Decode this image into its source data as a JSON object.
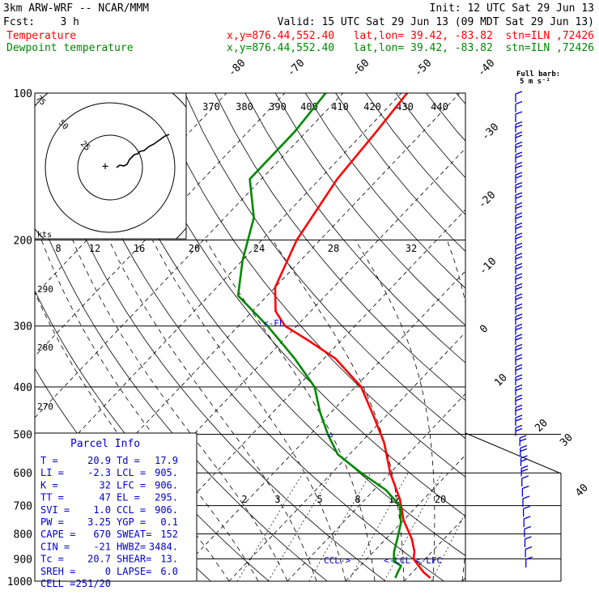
{
  "header": {
    "model": "3km ARW-WRF -- NCAR/MMM",
    "init": "Init: 12 UTC Sat 29 Jun 13",
    "fcst": "Fcst:    3 h",
    "valid": "Valid: 15 UTC Sat 29 Jun 13 (09 MDT Sat 29 Jun 13)",
    "temp_label": "Temperature",
    "temp_info": "x,y=876.44,552.40   lat,lon= 39.42, -83.82  stn=ILN ,72426",
    "dew_label": "Dewpoint temperature",
    "dew_info": "x,y=876.44,552.40   lat,lon= 39.42, -83.82  stn=ILN ,72426",
    "full_barb": "Full barb:",
    "full_barb_value": "5 m s⁻¹"
  },
  "colors": {
    "temperature": "#ff0000",
    "dewpoint": "#008800",
    "parcel_text": "#0000cc",
    "barbs": "#0000cc"
  },
  "chart_data": {
    "type": "line",
    "kind": "skew-t log-p sounding",
    "pressure_levels": [
      "100",
      "200",
      "300",
      "400",
      "500",
      "600",
      "700",
      "800",
      "900",
      "1000"
    ],
    "skewed_isotherm_labels": [
      "-80",
      "-70",
      "-60",
      "-50",
      "-40",
      "-30",
      "-20",
      "-10",
      "0",
      "10",
      "20",
      "30",
      "40"
    ],
    "theta_top_labels": [
      "370",
      "380",
      "390",
      "400",
      "410",
      "420",
      "430",
      "440"
    ],
    "mixing_ratio_labels": [
      "8",
      "12",
      "16",
      "20",
      "24",
      "28",
      "32"
    ],
    "mixing_ratio_lower_labels": [
      "2",
      "3",
      "5",
      "8",
      "12",
      "20"
    ],
    "theta_side_labels": [
      "290",
      "280",
      "270"
    ],
    "hodograph": {
      "rings": [
        "25",
        "50",
        "75"
      ],
      "unit": "kts"
    },
    "series": [
      {
        "name": "Temperature",
        "pressure": [
          985,
          960,
          930,
          900,
          870,
          820,
          750,
          680,
          600,
          520,
          460,
          400,
          350,
          320,
          300,
          280,
          250,
          200,
          150,
          120,
          100
        ],
        "values": [
          24,
          22,
          20,
          18,
          17,
          14.5,
          10,
          6,
          0,
          -6,
          -12,
          -19,
          -28,
          -36,
          -42,
          -46,
          -50,
          -54,
          -57,
          -58,
          -59
        ]
      },
      {
        "name": "Dewpoint temperature",
        "pressure": [
          985,
          960,
          930,
          910,
          870,
          820,
          760,
          700,
          650,
          600,
          550,
          500,
          450,
          400,
          350,
          300,
          260,
          220,
          180,
          150,
          120,
          100
        ],
        "values": [
          18,
          17.5,
          17,
          15,
          13.5,
          12,
          10,
          7,
          2,
          -5,
          -12,
          -17,
          -22,
          -27,
          -35,
          -45,
          -55,
          -60,
          -65,
          -72,
          -72,
          -73
        ]
      }
    ],
    "annotations": [
      "<-FL",
      "CCL->",
      "<-LCL",
      "<-LFC"
    ]
  },
  "parcel_info": {
    "title": "Parcel Info",
    "rows": [
      [
        "T  =",
        "20.9",
        "Td =",
        "17.9"
      ],
      [
        "LI =",
        "-2.3",
        "LCL =",
        "905."
      ],
      [
        "K  =",
        "32",
        "LFC =",
        "906."
      ],
      [
        "TT =",
        "47",
        "EL  =",
        "295."
      ],
      [
        "SVI =",
        "1.0",
        "CCL =",
        "906."
      ],
      [
        "PW =",
        "3.25",
        "YGP =",
        "0.1"
      ],
      [
        "CAPE =",
        "670",
        "SWEAT=",
        "152"
      ],
      [
        "CIN =",
        "-21",
        "HWBZ=",
        "3484."
      ],
      [
        "Tc =",
        "20.7",
        "SHEAR=",
        "13."
      ],
      [
        "SREH =",
        "0",
        "LAPSE=",
        "6.0"
      ],
      [
        "CELL =",
        "251/20",
        "",
        ""
      ]
    ]
  }
}
